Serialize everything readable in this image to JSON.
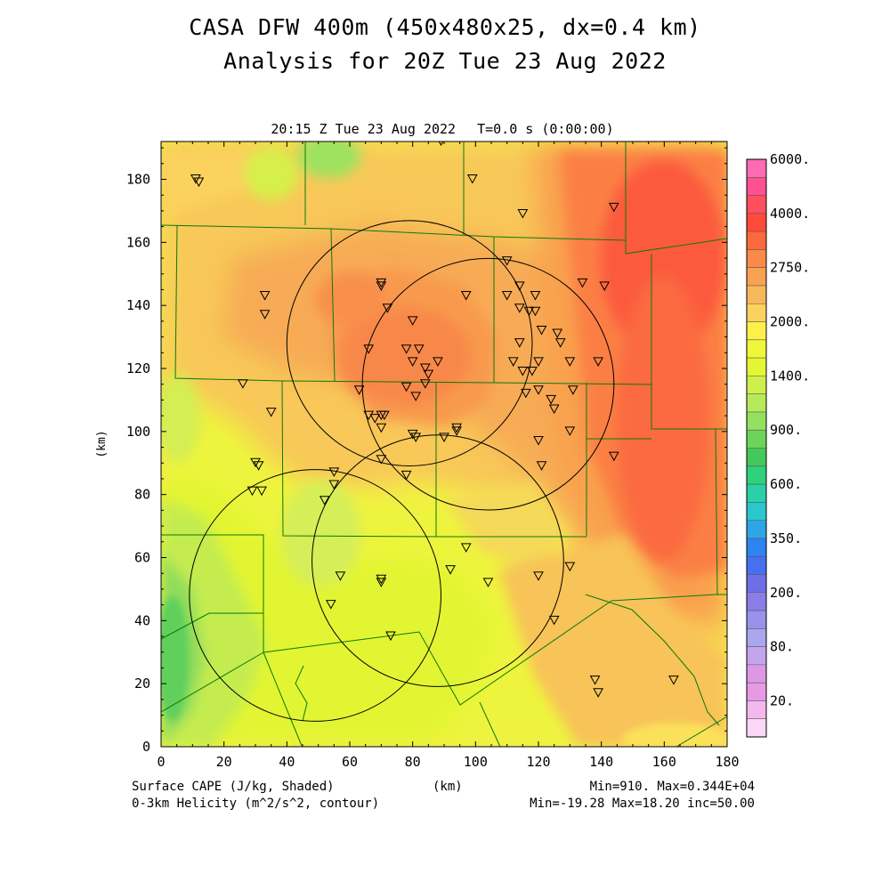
{
  "header": {
    "title_line1": "CASA DFW 400m (450x480x25, dx=0.4 km)",
    "title_line2": "Analysis for 20Z Tue 23 Aug 2022",
    "plot_time": "20:15 Z Tue 23 Aug 2022",
    "integration_time": "T=0.0 s (0:00:00)"
  },
  "axes": {
    "x_label": "(km)",
    "y_label": "(km)",
    "x_ticks": [
      "0",
      "20",
      "40",
      "60",
      "80",
      "100",
      "120",
      "140",
      "160",
      "180"
    ],
    "y_ticks": [
      "0",
      "20",
      "40",
      "60",
      "80",
      "100",
      "120",
      "140",
      "160",
      "180"
    ],
    "xlim": [
      0,
      180
    ],
    "ylim": [
      0,
      192
    ]
  },
  "colorbar": {
    "labels": [
      "6000.",
      "4000.",
      "2750.",
      "2000.",
      "1400.",
      "900.",
      "600.",
      "350.",
      "200.",
      "80.",
      "20."
    ],
    "colors": [
      "#ff6ab4",
      "#ff5090",
      "#ff4f5e",
      "#ff4a3a",
      "#fb6a3c",
      "#fa8a4a",
      "#f8a252",
      "#f7b85b",
      "#fbd25d",
      "#fff049",
      "#eef73a",
      "#e4f534",
      "#cff04c",
      "#b6ea5a",
      "#96e060",
      "#6dd45b",
      "#44c85a",
      "#2ed27c",
      "#2ad0a8",
      "#2ac8cc",
      "#2ea6e6",
      "#2e84f0",
      "#4670f0",
      "#6e6ee6",
      "#8a7ee6",
      "#9a92ea",
      "#aca6ee",
      "#c4a4ec",
      "#dc98e2",
      "#e79ae4",
      "#f3b9ee",
      "#fbd8f8"
    ]
  },
  "footer": {
    "field_shaded": "Surface CAPE (J/kg, Shaded)",
    "field_contour": "0-3km Helicity (m^2/s^2, contour)",
    "x_unit": "(km)",
    "shaded_stats": "Min=910. Max=0.344E+04",
    "contour_stats": "Min=-19.28 Max=18.20 inc=50.00"
  },
  "map_colors": {
    "county_lines": "#0a7a0a",
    "radar_rings": "#000000",
    "station_marker": "#000000"
  },
  "radars": [
    {
      "x": 79,
      "y": 128,
      "r": 39
    },
    {
      "x": 104,
      "y": 115,
      "r": 40
    },
    {
      "x": 88,
      "y": 59,
      "r": 40
    },
    {
      "x": 49,
      "y": 48,
      "r": 40
    }
  ],
  "stations": [
    [
      11,
      180
    ],
    [
      12,
      179
    ],
    [
      89,
      192
    ],
    [
      99,
      180
    ],
    [
      115,
      169
    ],
    [
      144,
      171
    ],
    [
      33,
      143
    ],
    [
      33,
      137
    ],
    [
      70,
      147
    ],
    [
      70,
      146
    ],
    [
      72,
      139
    ],
    [
      80,
      135
    ],
    [
      97,
      143
    ],
    [
      110,
      154
    ],
    [
      114,
      146
    ],
    [
      110,
      143
    ],
    [
      119,
      143
    ],
    [
      114,
      139
    ],
    [
      117,
      138
    ],
    [
      119,
      138
    ],
    [
      121,
      132
    ],
    [
      126,
      131
    ],
    [
      127,
      128
    ],
    [
      114,
      128
    ],
    [
      112,
      122
    ],
    [
      115,
      119
    ],
    [
      118,
      119
    ],
    [
      120,
      122
    ],
    [
      120,
      113
    ],
    [
      116,
      112
    ],
    [
      124,
      110
    ],
    [
      125,
      107
    ],
    [
      134,
      147
    ],
    [
      141,
      146
    ],
    [
      130,
      122
    ],
    [
      139,
      122
    ],
    [
      131,
      113
    ],
    [
      130,
      100
    ],
    [
      144,
      92
    ],
    [
      120,
      97
    ],
    [
      121,
      89
    ],
    [
      66,
      126
    ],
    [
      78,
      126
    ],
    [
      82,
      126
    ],
    [
      88,
      122
    ],
    [
      80,
      122
    ],
    [
      84,
      120
    ],
    [
      85,
      118
    ],
    [
      84,
      115
    ],
    [
      78,
      114
    ],
    [
      81,
      111
    ],
    [
      63,
      113
    ],
    [
      66,
      105
    ],
    [
      68,
      104
    ],
    [
      70,
      105
    ],
    [
      71,
      105
    ],
    [
      70,
      101
    ],
    [
      80,
      99
    ],
    [
      81,
      98
    ],
    [
      90,
      98
    ],
    [
      94,
      101
    ],
    [
      94,
      100
    ],
    [
      70,
      91
    ],
    [
      78,
      86
    ],
    [
      26,
      115
    ],
    [
      35,
      106
    ],
    [
      30,
      90
    ],
    [
      31,
      89
    ],
    [
      29,
      81
    ],
    [
      32,
      81
    ],
    [
      55,
      87
    ],
    [
      55,
      83
    ],
    [
      52,
      78
    ],
    [
      57,
      54
    ],
    [
      70,
      53
    ],
    [
      70,
      52
    ],
    [
      54,
      45
    ],
    [
      73,
      35
    ],
    [
      97,
      63
    ],
    [
      92,
      56
    ],
    [
      104,
      52
    ],
    [
      120,
      54
    ],
    [
      130,
      57
    ],
    [
      125,
      40
    ],
    [
      138,
      21
    ],
    [
      139,
      17
    ],
    [
      163,
      21
    ]
  ],
  "chart_data": {
    "type": "heatmap",
    "field": "Surface CAPE",
    "units": "J/kg",
    "min": 910,
    "max": 3440,
    "xlim": [
      0,
      180
    ],
    "ylim": [
      0,
      192
    ],
    "regions_descending": [
      {
        "level": 3440,
        "desc": "max core east-northeast",
        "center": [
          155,
          150
        ]
      },
      {
        "level": 2750,
        "desc": "east band",
        "center": [
          160,
          100
        ]
      },
      {
        "level": 2400,
        "desc": "central-north max",
        "center": [
          75,
          125
        ]
      },
      {
        "level": 2000,
        "desc": "north and east background"
      },
      {
        "level": 1600,
        "desc": "south and central"
      },
      {
        "level": 1100,
        "desc": "southwest minimum",
        "center": [
          5,
          30
        ]
      }
    ]
  }
}
